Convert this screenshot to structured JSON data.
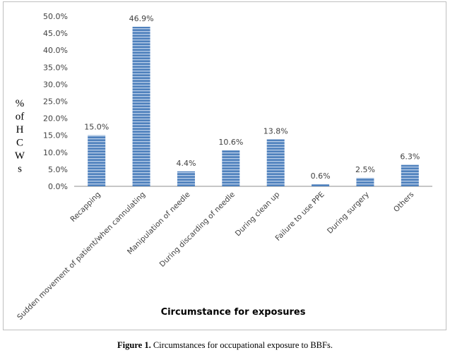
{
  "chart_data": {
    "type": "bar",
    "categories": [
      "Recapping",
      "Sudden movement of patient/when cannulating",
      "Manipulation of needle",
      "During discarding of needle",
      "During clean up",
      "Failure to use PPE",
      "During surgery",
      "Others"
    ],
    "values": [
      15.0,
      46.9,
      4.4,
      10.6,
      13.8,
      0.6,
      2.5,
      6.3
    ],
    "data_labels": [
      "15.0%",
      "46.9%",
      "4.4%",
      "10.6%",
      "13.8%",
      "0.6%",
      "2.5%",
      "6.3%"
    ],
    "yticks": [
      "0.0%",
      "5.0%",
      "10.0%",
      "15.0%",
      "20.0%",
      "25.0%",
      "30.0%",
      "35.0%",
      "40.0%",
      "45.0%",
      "50.0%"
    ],
    "ylim": [
      0,
      50
    ],
    "xlabel": "Circumstance for exposures",
    "ylabel_chars": [
      "%",
      "of",
      "H",
      "C",
      "W",
      "s"
    ],
    "grid": false,
    "bar_color": "#4f81bd",
    "bar_stripe_color": "#bcd0ea"
  },
  "caption": {
    "label": "Figure 1.",
    "text": " Circumstances for occupational exposure to BBFs."
  }
}
